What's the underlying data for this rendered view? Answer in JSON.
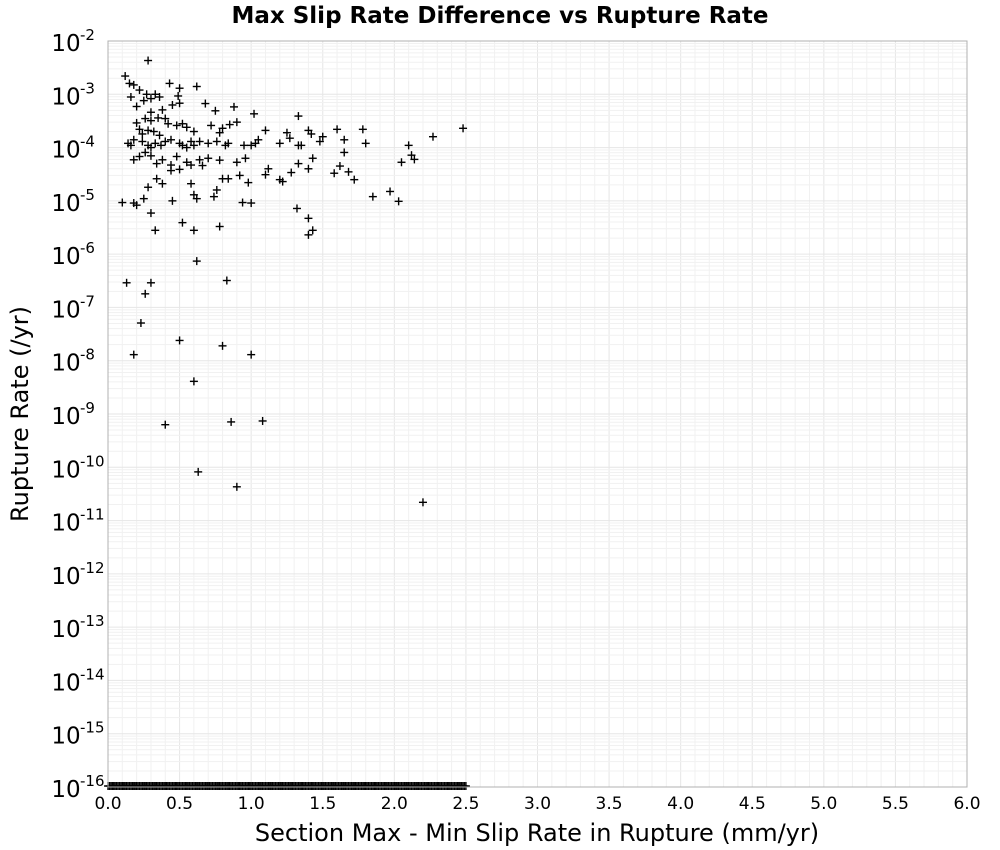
{
  "chart_data": {
    "type": "scatter",
    "title": "Max Slip Rate Difference vs Rupture Rate",
    "xlabel": "Section Max - Min Slip Rate in Rupture (mm/yr)",
    "ylabel": "Rupture Rate (/yr)",
    "xlim": [
      0,
      6
    ],
    "ylim": [
      1e-16,
      0.01
    ],
    "yscale": "log",
    "grid": true,
    "marker": "plus",
    "marker_color": "#000000",
    "x_ticks": [
      "0.0",
      "0.5",
      "1.0",
      "1.5",
      "2.0",
      "2.5",
      "3.0",
      "3.5",
      "4.0",
      "4.5",
      "5.0",
      "5.5",
      "6.0"
    ],
    "y_ticks": [
      {
        "base": "10",
        "exp": "-2"
      },
      {
        "base": "10",
        "exp": "-3"
      },
      {
        "base": "10",
        "exp": "-4"
      },
      {
        "base": "10",
        "exp": "-5"
      },
      {
        "base": "10",
        "exp": "-6"
      },
      {
        "base": "10",
        "exp": "-7"
      },
      {
        "base": "10",
        "exp": "-8"
      },
      {
        "base": "10",
        "exp": "-9"
      },
      {
        "base": "10",
        "exp": "-10"
      },
      {
        "base": "10",
        "exp": "-11"
      },
      {
        "base": "10",
        "exp": "-12"
      },
      {
        "base": "10",
        "exp": "-13"
      },
      {
        "base": "10",
        "exp": "-14"
      },
      {
        "base": "10",
        "exp": "-15"
      },
      {
        "base": "10",
        "exp": "-16"
      }
    ],
    "points": [
      [
        0.12,
        0.0022
      ],
      [
        0.28,
        0.0043
      ],
      [
        0.15,
        0.0016
      ],
      [
        0.18,
        0.0015
      ],
      [
        0.22,
        0.0012
      ],
      [
        0.16,
        0.00089
      ],
      [
        0.2,
        0.00059
      ],
      [
        0.25,
        0.00076
      ],
      [
        0.27,
        0.001
      ],
      [
        0.3,
        0.00083
      ],
      [
        0.33,
        0.001
      ],
      [
        0.36,
        0.00089
      ],
      [
        0.43,
        0.0016
      ],
      [
        0.49,
        0.00093
      ],
      [
        0.5,
        0.0013
      ],
      [
        0.45,
        0.00063
      ],
      [
        0.5,
        0.00068
      ],
      [
        0.38,
        0.00051
      ],
      [
        0.3,
        0.00046
      ],
      [
        0.26,
        0.00035
      ],
      [
        0.3,
        0.00032
      ],
      [
        0.35,
        0.00036
      ],
      [
        0.4,
        0.00035
      ],
      [
        0.42,
        0.00028
      ],
      [
        0.48,
        0.00026
      ],
      [
        0.52,
        0.00028
      ],
      [
        0.55,
        0.00024
      ],
      [
        0.6,
        0.0002
      ],
      [
        0.62,
        0.0014
      ],
      [
        0.68,
        0.00067
      ],
      [
        0.75,
        0.00049
      ],
      [
        0.8,
        0.00023
      ],
      [
        0.85,
        0.00027
      ],
      [
        0.88,
        0.00058
      ],
      [
        0.9,
        0.0003
      ],
      [
        0.72,
        0.00026
      ],
      [
        0.78,
        0.00019
      ],
      [
        0.2,
        0.00029
      ],
      [
        0.22,
        0.00022
      ],
      [
        0.24,
        0.00018
      ],
      [
        0.28,
        0.00021
      ],
      [
        0.32,
        0.0002
      ],
      [
        0.36,
        0.00017
      ],
      [
        0.18,
        0.00014
      ],
      [
        0.14,
        0.00012
      ],
      [
        0.16,
        0.00011
      ],
      [
        0.24,
        0.00013
      ],
      [
        0.28,
        0.00011
      ],
      [
        0.3,
        0.0001
      ],
      [
        0.33,
        0.00012
      ],
      [
        0.37,
        0.00011
      ],
      [
        0.4,
        0.00013
      ],
      [
        0.44,
        0.00014
      ],
      [
        0.5,
        0.00012
      ],
      [
        0.52,
        0.00011
      ],
      [
        0.55,
        0.0001
      ],
      [
        0.58,
        0.00013
      ],
      [
        0.6,
        0.00011
      ],
      [
        0.64,
        0.00013
      ],
      [
        0.7,
        0.00012
      ],
      [
        0.76,
        0.00013
      ],
      [
        0.82,
        0.00011
      ],
      [
        0.84,
        0.00012
      ],
      [
        0.95,
        0.00011
      ],
      [
        1.0,
        0.00011
      ],
      [
        1.03,
        0.00012
      ],
      [
        1.05,
        0.00014
      ],
      [
        1.02,
        0.00043
      ],
      [
        1.1,
        0.00021
      ],
      [
        1.2,
        0.00012
      ],
      [
        1.25,
        0.00019
      ],
      [
        1.27,
        0.00015
      ],
      [
        1.33,
        0.00039
      ],
      [
        1.33,
        0.00011
      ],
      [
        1.35,
        0.00011
      ],
      [
        1.4,
        0.00021
      ],
      [
        1.42,
        0.00018
      ],
      [
        1.48,
        0.00013
      ],
      [
        1.5,
        0.00016
      ],
      [
        1.6,
        0.00022
      ],
      [
        1.65,
        0.00014
      ],
      [
        1.78,
        0.00022
      ],
      [
        1.8,
        0.00012
      ],
      [
        2.1,
        0.00011
      ],
      [
        2.27,
        0.00016
      ],
      [
        2.48,
        0.00023
      ],
      [
        0.18,
        5.9e-05
      ],
      [
        0.22,
        6.8e-05
      ],
      [
        0.26,
        8.1e-05
      ],
      [
        0.3,
        7e-05
      ],
      [
        0.34,
        5e-05
      ],
      [
        0.38,
        5.9e-05
      ],
      [
        0.44,
        4.7e-05
      ],
      [
        0.48,
        6.8e-05
      ],
      [
        0.5,
        3.9e-05
      ],
      [
        0.55,
        5.3e-05
      ],
      [
        0.58,
        4.7e-05
      ],
      [
        0.64,
        5.9e-05
      ],
      [
        0.66,
        4.6e-05
      ],
      [
        0.7,
        6.3e-05
      ],
      [
        0.78,
        5.8e-05
      ],
      [
        0.9,
        5.3e-05
      ],
      [
        0.96,
        6.3e-05
      ],
      [
        1.1,
        3.1e-05
      ],
      [
        1.12,
        4e-05
      ],
      [
        1.2,
        2.5e-05
      ],
      [
        1.22,
        2.3e-05
      ],
      [
        1.28,
        3.4e-05
      ],
      [
        1.33,
        5e-05
      ],
      [
        1.4,
        4e-05
      ],
      [
        1.43,
        6.3e-05
      ],
      [
        1.58,
        3.3e-05
      ],
      [
        1.62,
        4.5e-05
      ],
      [
        1.65,
        8.1e-05
      ],
      [
        1.68,
        3.5e-05
      ],
      [
        1.72,
        2.5e-05
      ],
      [
        2.05,
        5.3e-05
      ],
      [
        2.12,
        7.2e-05
      ],
      [
        2.14,
        6e-05
      ],
      [
        0.28,
        1.8e-05
      ],
      [
        0.34,
        2.6e-05
      ],
      [
        0.38,
        2.1e-05
      ],
      [
        0.44,
        3.7e-05
      ],
      [
        0.58,
        2.1e-05
      ],
      [
        0.6,
        1.3e-05
      ],
      [
        0.62,
        1.1e-05
      ],
      [
        0.74,
        1.2e-05
      ],
      [
        0.76,
        1.6e-05
      ],
      [
        0.8,
        2.6e-05
      ],
      [
        0.84,
        2.6e-05
      ],
      [
        0.92,
        3e-05
      ],
      [
        0.98,
        2.2e-05
      ],
      [
        1.85,
        1.2e-05
      ],
      [
        1.97,
        1.5e-05
      ],
      [
        2.03,
        9.8e-06
      ],
      [
        0.1,
        9.3e-06
      ],
      [
        0.18,
        9.1e-06
      ],
      [
        0.2,
        8.3e-06
      ],
      [
        0.25,
        1.1e-05
      ],
      [
        0.3,
        5.9e-06
      ],
      [
        0.45,
        1e-05
      ],
      [
        0.52,
        3.9e-06
      ],
      [
        0.94,
        9.3e-06
      ],
      [
        1.0,
        9.1e-06
      ],
      [
        1.32,
        7.2e-06
      ],
      [
        1.4,
        4.7e-06
      ],
      [
        0.33,
        2.8e-06
      ],
      [
        0.6,
        2.8e-06
      ],
      [
        0.78,
        3.3e-06
      ],
      [
        1.4,
        2.3e-06
      ],
      [
        1.43,
        2.8e-06
      ],
      [
        0.62,
        7.4e-07
      ],
      [
        0.13,
        2.9e-07
      ],
      [
        0.3,
        2.9e-07
      ],
      [
        0.26,
        1.8e-07
      ],
      [
        0.83,
        3.2e-07
      ],
      [
        0.23,
        5.1e-08
      ],
      [
        0.5,
        2.4e-08
      ],
      [
        0.8,
        1.9e-08
      ],
      [
        0.18,
        1.3e-08
      ],
      [
        1.0,
        1.3e-08
      ],
      [
        0.6,
        4.1e-09
      ],
      [
        0.86,
        7.1e-10
      ],
      [
        1.08,
        7.4e-10
      ],
      [
        0.4,
        6.3e-10
      ],
      [
        0.63,
        8.2e-11
      ],
      [
        0.9,
        4.3e-11
      ],
      [
        2.2,
        2.2e-11
      ]
    ],
    "floor_points_x_range": [
      0.0,
      2.5
    ],
    "floor_points_y": 1e-16
  }
}
